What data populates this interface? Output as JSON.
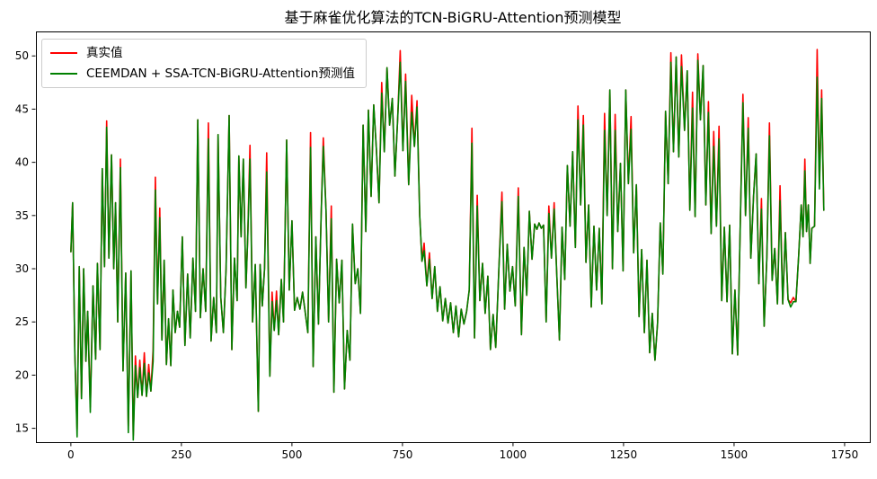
{
  "title": "基于麻雀优化算法的TCN-BiGRU-Attention预测模型",
  "legend": {
    "items": [
      {
        "label": "真实值",
        "color": "#ff0000"
      },
      {
        "label": "CEEMDAN + SSA-TCN-BiGRU-Attention预测值",
        "color": "#008000"
      }
    ]
  },
  "chart_data": {
    "type": "line",
    "title": "基于麻雀优化算法的TCN-BiGRU-Attention预测模型",
    "xlabel": "",
    "ylabel": "",
    "grid": false,
    "legend_position": "upper left",
    "xlim": [
      -79,
      1807
    ],
    "ylim": [
      13.7,
      52.3
    ],
    "xticks": [
      0,
      250,
      500,
      750,
      1000,
      1250,
      1500,
      1750
    ],
    "yticks": [
      15,
      20,
      25,
      30,
      35,
      40,
      45,
      50
    ],
    "series": [
      {
        "name": "真实值",
        "color": "#ff0000",
        "linewidth": 1.6,
        "points": [
          [
            0,
            31.6
          ],
          [
            4,
            36.2
          ],
          [
            9,
            22.0
          ],
          [
            14,
            14.9
          ],
          [
            19,
            30.2
          ],
          [
            24,
            17.8
          ],
          [
            29,
            30.0
          ],
          [
            34,
            21.3
          ],
          [
            38,
            26.0
          ],
          [
            44,
            17.0
          ],
          [
            50,
            28.4
          ],
          [
            56,
            21.5
          ],
          [
            60,
            30.5
          ],
          [
            66,
            22.4
          ],
          [
            71,
            39.4
          ],
          [
            76,
            30.2
          ],
          [
            81,
            43.9
          ],
          [
            86,
            31.0
          ],
          [
            92,
            40.7
          ],
          [
            97,
            30.0
          ],
          [
            101,
            36.2
          ],
          [
            106,
            25.0
          ],
          [
            112,
            40.3
          ],
          [
            118,
            20.4
          ],
          [
            124,
            29.6
          ],
          [
            130,
            15.2
          ],
          [
            136,
            29.8
          ],
          [
            141,
            14.3
          ],
          [
            146,
            21.8
          ],
          [
            151,
            17.9
          ],
          [
            156,
            21.4
          ],
          [
            161,
            18.1
          ],
          [
            166,
            22.1
          ],
          [
            171,
            18.0
          ],
          [
            176,
            21.0
          ],
          [
            181,
            18.5
          ],
          [
            186,
            22.4
          ],
          [
            191,
            38.6
          ],
          [
            196,
            26.7
          ],
          [
            201,
            35.7
          ],
          [
            206,
            23.3
          ],
          [
            211,
            30.8
          ],
          [
            216,
            21.0
          ],
          [
            221,
            25.3
          ],
          [
            226,
            20.9
          ],
          [
            231,
            28.0
          ],
          [
            236,
            24.0
          ],
          [
            241,
            26.0
          ],
          [
            246,
            24.5
          ],
          [
            252,
            33.0
          ],
          [
            258,
            22.8
          ],
          [
            264,
            29.5
          ],
          [
            270,
            23.5
          ],
          [
            276,
            31.0
          ],
          [
            282,
            26.0
          ],
          [
            287,
            44.0
          ],
          [
            293,
            25.4
          ],
          [
            299,
            30.0
          ],
          [
            305,
            26.0
          ],
          [
            311,
            43.7
          ],
          [
            317,
            23.2
          ],
          [
            323,
            27.3
          ],
          [
            329,
            24.0
          ],
          [
            333,
            42.6
          ],
          [
            339,
            27.3
          ],
          [
            345,
            24.0
          ],
          [
            351,
            30.0
          ],
          [
            358,
            44.4
          ],
          [
            364,
            22.4
          ],
          [
            370,
            31.0
          ],
          [
            376,
            27.0
          ],
          [
            380,
            40.6
          ],
          [
            385,
            33.0
          ],
          [
            390,
            40.3
          ],
          [
            396,
            28.2
          ],
          [
            400,
            33.0
          ],
          [
            405,
            41.6
          ],
          [
            411,
            25.0
          ],
          [
            417,
            30.4
          ],
          [
            424,
            16.6
          ],
          [
            428,
            30.4
          ],
          [
            433,
            26.5
          ],
          [
            438,
            30.0
          ],
          [
            443,
            40.9
          ],
          [
            450,
            19.9
          ],
          [
            455,
            27.8
          ],
          [
            460,
            24.2
          ],
          [
            465,
            27.9
          ],
          [
            470,
            23.8
          ],
          [
            476,
            29.0
          ],
          [
            481,
            25.0
          ],
          [
            488,
            42.1
          ],
          [
            494,
            28.0
          ],
          [
            500,
            34.5
          ],
          [
            506,
            26.1
          ],
          [
            512,
            27.3
          ],
          [
            518,
            26.2
          ],
          [
            524,
            27.8
          ],
          [
            530,
            25.9
          ],
          [
            536,
            24.0
          ],
          [
            542,
            42.8
          ],
          [
            548,
            20.8
          ],
          [
            554,
            33.0
          ],
          [
            560,
            24.8
          ],
          [
            566,
            35.0
          ],
          [
            571,
            42.3
          ],
          [
            577,
            35.5
          ],
          [
            583,
            25.0
          ],
          [
            589,
            35.9
          ],
          [
            595,
            18.4
          ],
          [
            601,
            30.9
          ],
          [
            607,
            26.8
          ],
          [
            613,
            30.8
          ],
          [
            619,
            18.7
          ],
          [
            625,
            24.2
          ],
          [
            631,
            21.4
          ],
          [
            637,
            34.2
          ],
          [
            643,
            28.6
          ],
          [
            649,
            30.0
          ],
          [
            655,
            25.8
          ],
          [
            661,
            43.5
          ],
          [
            667,
            33.5
          ],
          [
            673,
            44.9
          ],
          [
            679,
            36.8
          ],
          [
            685,
            45.4
          ],
          [
            691,
            41.2
          ],
          [
            697,
            36.2
          ],
          [
            703,
            47.5
          ],
          [
            709,
            41.0
          ],
          [
            715,
            48.9
          ],
          [
            721,
            43.5
          ],
          [
            727,
            46.0
          ],
          [
            733,
            38.7
          ],
          [
            739,
            44.0
          ],
          [
            745,
            50.5
          ],
          [
            751,
            41.1
          ],
          [
            757,
            48.3
          ],
          [
            764,
            37.9
          ],
          [
            771,
            46.3
          ],
          [
            777,
            41.5
          ],
          [
            783,
            45.8
          ],
          [
            789,
            35.0
          ],
          [
            794,
            30.7
          ],
          [
            799,
            32.4
          ],
          [
            805,
            28.4
          ],
          [
            811,
            31.5
          ],
          [
            817,
            27.2
          ],
          [
            823,
            30.2
          ],
          [
            829,
            26.0
          ],
          [
            835,
            28.3
          ],
          [
            841,
            25.1
          ],
          [
            847,
            27.2
          ],
          [
            853,
            24.9
          ],
          [
            859,
            26.8
          ],
          [
            865,
            24.0
          ],
          [
            871,
            26.5
          ],
          [
            877,
            23.6
          ],
          [
            883,
            26.2
          ],
          [
            889,
            24.8
          ],
          [
            895,
            26.0
          ],
          [
            901,
            28.0
          ],
          [
            907,
            43.2
          ],
          [
            913,
            23.5
          ],
          [
            919,
            36.9
          ],
          [
            925,
            27.0
          ],
          [
            931,
            30.5
          ],
          [
            937,
            25.8
          ],
          [
            943,
            29.3
          ],
          [
            949,
            22.4
          ],
          [
            955,
            25.7
          ],
          [
            961,
            22.6
          ],
          [
            968,
            30.0
          ],
          [
            975,
            37.2
          ],
          [
            981,
            26.2
          ],
          [
            987,
            32.3
          ],
          [
            993,
            27.9
          ],
          [
            999,
            30.2
          ],
          [
            1005,
            26.5
          ],
          [
            1012,
            37.6
          ],
          [
            1019,
            23.8
          ],
          [
            1025,
            32.0
          ],
          [
            1031,
            27.5
          ],
          [
            1037,
            35.4
          ],
          [
            1043,
            30.9
          ],
          [
            1049,
            34.2
          ],
          [
            1054,
            33.7
          ],
          [
            1059,
            34.3
          ],
          [
            1064,
            33.8
          ],
          [
            1069,
            34.1
          ],
          [
            1075,
            25.0
          ],
          [
            1081,
            35.9
          ],
          [
            1087,
            31.0
          ],
          [
            1093,
            36.2
          ],
          [
            1099,
            29.5
          ],
          [
            1105,
            23.3
          ],
          [
            1111,
            33.9
          ],
          [
            1117,
            29.0
          ],
          [
            1123,
            39.7
          ],
          [
            1129,
            34.0
          ],
          [
            1135,
            41.0
          ],
          [
            1141,
            32.0
          ],
          [
            1147,
            45.3
          ],
          [
            1153,
            36.0
          ],
          [
            1159,
            44.4
          ],
          [
            1165,
            30.6
          ],
          [
            1171,
            36.0
          ],
          [
            1177,
            26.4
          ],
          [
            1183,
            34.0
          ],
          [
            1189,
            28.0
          ],
          [
            1195,
            33.8
          ],
          [
            1201,
            26.7
          ],
          [
            1207,
            44.6
          ],
          [
            1213,
            35.0
          ],
          [
            1219,
            46.8
          ],
          [
            1225,
            30.0
          ],
          [
            1231,
            44.5
          ],
          [
            1237,
            33.5
          ],
          [
            1243,
            39.9
          ],
          [
            1249,
            29.8
          ],
          [
            1255,
            46.8
          ],
          [
            1261,
            38.0
          ],
          [
            1267,
            44.3
          ],
          [
            1273,
            31.5
          ],
          [
            1279,
            37.9
          ],
          [
            1285,
            25.5
          ],
          [
            1291,
            31.8
          ],
          [
            1297,
            24.0
          ],
          [
            1303,
            30.8
          ],
          [
            1309,
            22.1
          ],
          [
            1315,
            25.8
          ],
          [
            1321,
            21.4
          ],
          [
            1327,
            24.9
          ],
          [
            1333,
            34.3
          ],
          [
            1339,
            29.5
          ],
          [
            1345,
            44.8
          ],
          [
            1351,
            38.0
          ],
          [
            1357,
            50.3
          ],
          [
            1363,
            41.0
          ],
          [
            1369,
            49.9
          ],
          [
            1375,
            40.5
          ],
          [
            1381,
            50.1
          ],
          [
            1388,
            43.0
          ],
          [
            1394,
            48.6
          ],
          [
            1400,
            35.5
          ],
          [
            1406,
            46.6
          ],
          [
            1412,
            34.9
          ],
          [
            1418,
            50.2
          ],
          [
            1424,
            44.0
          ],
          [
            1430,
            49.1
          ],
          [
            1436,
            36.0
          ],
          [
            1442,
            45.7
          ],
          [
            1448,
            33.3
          ],
          [
            1454,
            42.9
          ],
          [
            1460,
            34.0
          ],
          [
            1466,
            43.4
          ],
          [
            1472,
            27.0
          ],
          [
            1478,
            33.9
          ],
          [
            1484,
            26.9
          ],
          [
            1490,
            34.1
          ],
          [
            1496,
            22.0
          ],
          [
            1502,
            28.0
          ],
          [
            1508,
            21.9
          ],
          [
            1514,
            34.0
          ],
          [
            1520,
            46.4
          ],
          [
            1526,
            35.0
          ],
          [
            1532,
            44.2
          ],
          [
            1538,
            31.0
          ],
          [
            1544,
            36.8
          ],
          [
            1550,
            40.8
          ],
          [
            1556,
            28.6
          ],
          [
            1562,
            36.6
          ],
          [
            1568,
            24.6
          ],
          [
            1574,
            31.0
          ],
          [
            1580,
            43.7
          ],
          [
            1586,
            28.9
          ],
          [
            1592,
            31.9
          ],
          [
            1598,
            26.7
          ],
          [
            1604,
            37.8
          ],
          [
            1610,
            26.7
          ],
          [
            1616,
            33.4
          ],
          [
            1622,
            27.1
          ],
          [
            1628,
            26.8
          ],
          [
            1634,
            27.3
          ],
          [
            1640,
            26.9
          ],
          [
            1646,
            31.2
          ],
          [
            1652,
            36.0
          ],
          [
            1656,
            33.0
          ],
          [
            1660,
            40.3
          ],
          [
            1664,
            33.5
          ],
          [
            1668,
            36.0
          ],
          [
            1672,
            30.5
          ],
          [
            1676,
            33.8
          ],
          [
            1682,
            34.0
          ],
          [
            1688,
            50.6
          ],
          [
            1693,
            38.0
          ],
          [
            1698,
            46.8
          ],
          [
            1703,
            35.5
          ]
        ]
      },
      {
        "name": "CEEMDAN + SSA-TCN-BiGRU-Attention预测值",
        "color": "#008000",
        "linewidth": 1.6,
        "derived_from": "真实值",
        "offsets_by_index": {
          "3": -0.7,
          "9": -0.5,
          "16": -0.6,
          "22": -0.8,
          "25": -0.6,
          "27": -0.4,
          "28": -0.9,
          "30": -0.7,
          "32": -1.0,
          "34": -0.8,
          "36": -1.1,
          "37": -1.2,
          "39": -0.9,
          "59": -1.5,
          "76": -1.3,
          "83": -1.8,
          "85": -0.9,
          "87": -0.9,
          "100": -1.4,
          "105": -0.8,
          "108": -1.2,
          "127": -1.0,
          "134": -1.1,
          "136": -0.7,
          "138": -1.6,
          "140": -0.6,
          "143": -0.7,
          "145": -0.6,
          "161": -1.4,
          "163": -1.0,
          "172": -0.9,
          "178": -0.8,
          "190": -0.7,
          "192": -0.6,
          "201": -1.3,
          "203": -0.9,
          "211": -1.6,
          "215": -1.5,
          "221": -1.2,
          "236": -0.9,
          "240": -1.1,
          "244": -1.5,
          "246": -0.6,
          "250": -1.0,
          "252": -1.4,
          "254": -1.2,
          "263": -0.8,
          "265": -1.0,
          "270": -1.0,
          "273": -1.2,
          "277": -1.4,
          "281": -0.4,
          "282": -0.4,
          "287": -1.1,
          "293": -2.6,
          "294": -0.5,
          "295": -0.8
        }
      }
    ]
  }
}
